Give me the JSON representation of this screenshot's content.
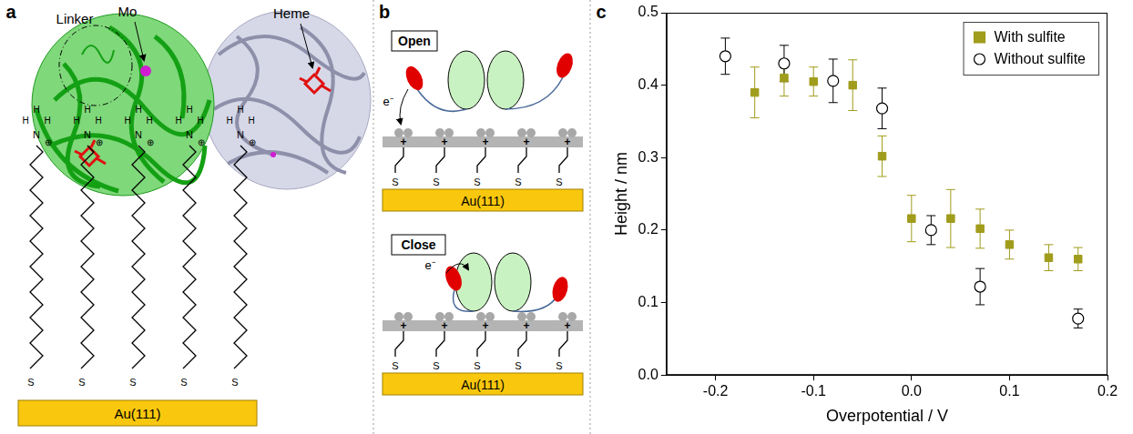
{
  "diagram": {
    "panel_a": {
      "letter": "a",
      "linker": "Linker",
      "mo": "Mo",
      "heme": "Heme",
      "substrate": "Au(111)",
      "thiol_atom": "S",
      "amine_atom": "N",
      "hydrogen": "H",
      "charge": "⊕"
    },
    "panel_b": {
      "letter": "b",
      "states": [
        "Open",
        "Close"
      ],
      "electron": "e⁻",
      "substrate": "Au(111)",
      "thiol_atom": "S",
      "charge": "+"
    },
    "panel_c": {
      "letter": "c"
    }
  },
  "chart_data": {
    "type": "scatter",
    "x_label": "Overpotential / V",
    "y_label": "Height / nm",
    "xlim": [
      -0.25,
      0.2
    ],
    "xticks": [
      -0.2,
      -0.1,
      {
        "value": 0,
        "label": "0.0"
      },
      0.1,
      0.2
    ],
    "ylim": [
      0,
      0.5
    ],
    "yticks": [
      {
        "value": 0,
        "label": "0.0"
      },
      0.1,
      0.2,
      0.3,
      0.4,
      0.5
    ],
    "grid": false,
    "legend": "upper right",
    "series": [
      {
        "name": "With sulfite",
        "color": "#a09c1c",
        "marker": "square",
        "x": [
          -0.16,
          -0.13,
          -0.1,
          -0.06,
          -0.03,
          0.0,
          0.04,
          0.07,
          0.1,
          0.14,
          0.17
        ],
        "values": [
          0.39,
          0.41,
          0.405,
          0.4,
          0.302,
          0.216,
          0.216,
          0.202,
          0.18,
          0.162,
          0.16
        ],
        "errors": [
          0.035,
          0.025,
          0.02,
          0.035,
          0.028,
          0.032,
          0.04,
          0.027,
          0.02,
          0.018,
          0.016
        ]
      },
      {
        "name": "Without sulfite",
        "color": "#000000",
        "marker": "open_circle",
        "x": [
          -0.19,
          -0.13,
          -0.08,
          -0.03,
          0.02,
          0.07,
          0.17
        ],
        "values": [
          0.44,
          0.43,
          0.406,
          0.368,
          0.2,
          0.122,
          0.078
        ],
        "errors": [
          0.025,
          0.025,
          0.03,
          0.028,
          0.02,
          0.025,
          0.013
        ]
      }
    ]
  }
}
